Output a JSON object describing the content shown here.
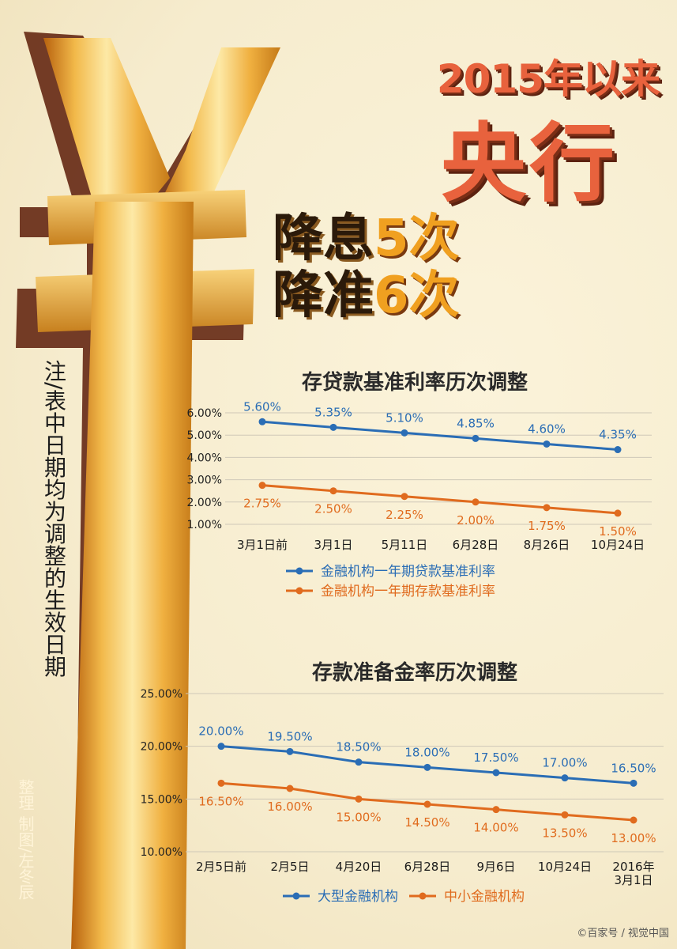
{
  "headline": {
    "line1": "2015年以来",
    "line2": "央行",
    "cut_rate_pre": "降息",
    "cut_rate_num": "5次",
    "cut_rrr_pre": "降准",
    "cut_rrr_num": "6次"
  },
  "note": "注/表中日期均为调整的生效日期",
  "credit": "整理 制图/左冬辰",
  "watermark": "©百家号 / 视觉中国",
  "colors": {
    "blue": "#2a6db5",
    "orange": "#e06b1e",
    "title_orange": "#e8623d",
    "gold": "#f0a020"
  },
  "chart_data": [
    {
      "type": "line",
      "title": "存贷款基准利率历次调整",
      "categories": [
        "3月1日前",
        "3月1日",
        "5月11日",
        "6月28日",
        "8月26日",
        "10月24日"
      ],
      "y_ticks": [
        "6.00%",
        "5.00%",
        "4.00%",
        "3.00%",
        "2.00%",
        "1.00%"
      ],
      "ylim": [
        1,
        6
      ],
      "series": [
        {
          "name": "金融机构一年期贷款基准利率",
          "color": "#2a6db5",
          "values": [
            5.6,
            5.35,
            5.1,
            4.85,
            4.6,
            4.35
          ],
          "labels": [
            "5.60%",
            "5.35%",
            "5.10%",
            "4.85%",
            "4.60%",
            "4.35%"
          ]
        },
        {
          "name": "金融机构一年期存款基准利率",
          "color": "#e06b1e",
          "values": [
            2.75,
            2.5,
            2.25,
            2.0,
            1.75,
            1.5
          ],
          "labels": [
            "2.75%",
            "2.50%",
            "2.25%",
            "2.00%",
            "1.75%",
            "1.50%"
          ]
        }
      ],
      "legend": "bottom"
    },
    {
      "type": "line",
      "title": "存款准备金率历次调整",
      "categories": [
        "2月5日前",
        "2月5日",
        "4月20日",
        "6月28日",
        "9月6日",
        "10月24日",
        "2016年\n3月1日"
      ],
      "y_ticks": [
        "25.00%",
        "20.00%",
        "15.00%",
        "10.00%"
      ],
      "ylim": [
        10,
        25
      ],
      "series": [
        {
          "name": "大型金融机构",
          "color": "#2a6db5",
          "values": [
            20.0,
            19.5,
            18.5,
            18.0,
            17.5,
            17.0,
            16.5
          ],
          "labels": [
            "20.00%",
            "19.50%",
            "18.50%",
            "18.00%",
            "17.50%",
            "17.00%",
            "16.50%"
          ]
        },
        {
          "name": "中小金融机构",
          "color": "#e06b1e",
          "values": [
            16.5,
            16.0,
            15.0,
            14.5,
            14.0,
            13.5,
            13.0
          ],
          "labels": [
            "16.50%",
            "16.00%",
            "15.00%",
            "14.50%",
            "14.00%",
            "13.50%",
            "13.00%"
          ]
        }
      ],
      "legend": "bottom"
    }
  ]
}
